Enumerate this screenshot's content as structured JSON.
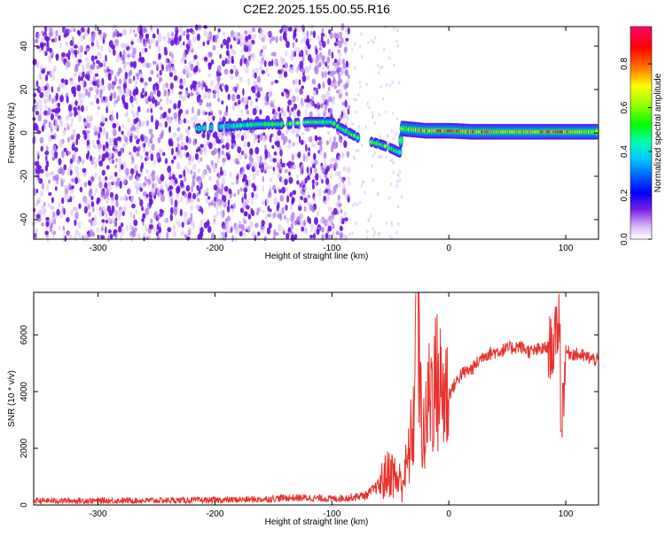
{
  "title": "C2E2.2025.155.00.55.R16",
  "chart_data": [
    {
      "type": "heatmap",
      "xlabel": "Height of straight line (km)",
      "ylabel": "Frequency (Hz)",
      "xlim": [
        -355,
        128
      ],
      "ylim": [
        -49,
        49
      ],
      "xticks": [
        -300,
        -200,
        -100,
        0,
        100
      ],
      "yticks": [
        -40,
        -20,
        0,
        20,
        40
      ],
      "colorbar": {
        "label": "Normalized spectral amplitude",
        "ticks": [
          0.0,
          0.2,
          0.4,
          0.6,
          0.8
        ],
        "range": [
          0.0,
          0.97
        ],
        "colormap": "rainbow (white-violet-blue-cyan-green-yellow-red-magenta)"
      },
      "noise_region_x": [
        -355,
        -85
      ],
      "ridge": [
        {
          "x": -215,
          "y": 2,
          "amp": 0.45
        },
        {
          "x": -190,
          "y": 3,
          "amp": 0.35
        },
        {
          "x": -160,
          "y": 4,
          "amp": 0.5
        },
        {
          "x": -140,
          "y": 4,
          "amp": 0.55
        },
        {
          "x": -120,
          "y": 5,
          "amp": 0.6
        },
        {
          "x": -100,
          "y": 5,
          "amp": 0.55
        },
        {
          "x": -95,
          "y": 3,
          "amp": 0.6
        },
        {
          "x": -85,
          "y": 0,
          "amp": 0.6
        },
        {
          "x": -75,
          "y": -3,
          "amp": 0.55
        },
        {
          "x": -60,
          "y": -5,
          "amp": 0.6
        },
        {
          "x": -50,
          "y": -7,
          "amp": 0.55
        },
        {
          "x": -42,
          "y": -9,
          "amp": 0.4
        },
        {
          "x": -40,
          "y": 2,
          "amp": 0.6
        },
        {
          "x": -20,
          "y": 1,
          "amp": 0.8
        },
        {
          "x": 0,
          "y": 1,
          "amp": 0.9
        },
        {
          "x": 20,
          "y": 0.5,
          "amp": 0.85
        },
        {
          "x": 50,
          "y": 0.5,
          "amp": 0.65
        },
        {
          "x": 90,
          "y": 0.5,
          "amp": 0.85
        },
        {
          "x": 128,
          "y": 0.5,
          "amp": 0.6
        }
      ]
    },
    {
      "type": "line",
      "xlabel": "Height of straight line (km)",
      "ylabel": "SNR (10 * v/v)",
      "xlim": [
        -355,
        128
      ],
      "ylim": [
        0,
        7500
      ],
      "xticks": [
        -300,
        -200,
        -100,
        0,
        100
      ],
      "yticks": [
        0,
        2000,
        4000,
        6000
      ],
      "series": [
        {
          "color": "#e8322e",
          "x": [
            -355,
            -300,
            -250,
            -200,
            -160,
            -140,
            -120,
            -100,
            -85,
            -70,
            -60,
            -50,
            -45,
            -40,
            -35,
            -30,
            -27,
            -25,
            -22,
            -20,
            -18,
            -15,
            -10,
            -5,
            0,
            10,
            20,
            30,
            40,
            50,
            60,
            70,
            80,
            90,
            95,
            96,
            100,
            110,
            128
          ],
          "y": [
            150,
            150,
            160,
            170,
            200,
            250,
            250,
            220,
            260,
            350,
            700,
            1200,
            900,
            800,
            1500,
            3000,
            7500,
            4000,
            2500,
            2500,
            3500,
            4200,
            4300,
            4000,
            3900,
            4600,
            4800,
            5300,
            5400,
            5500,
            5600,
            5400,
            5500,
            5600,
            6800,
            2600,
            5400,
            5300,
            5100
          ]
        }
      ]
    }
  ]
}
